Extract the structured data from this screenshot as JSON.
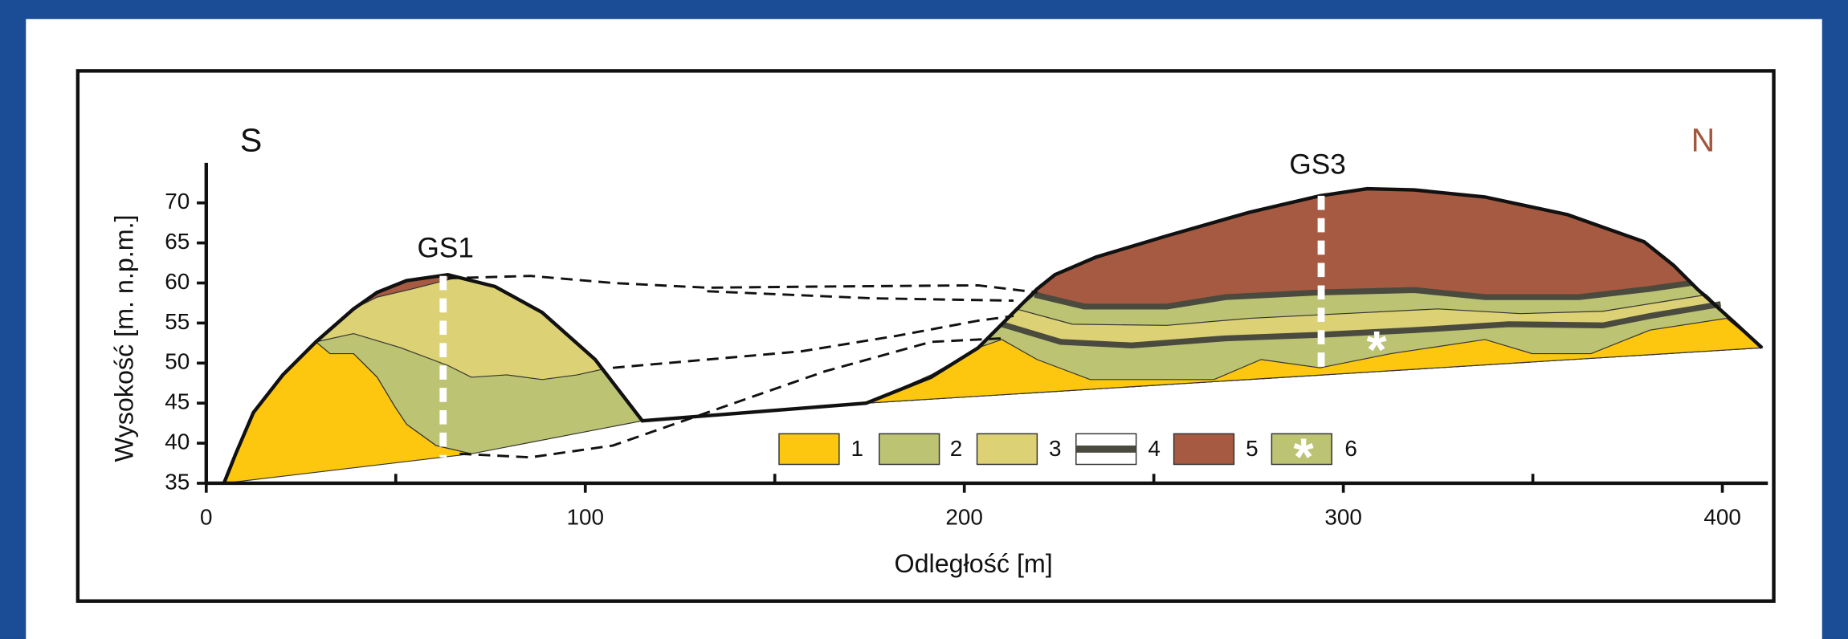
{
  "header": {
    "south": "S",
    "north": "N"
  },
  "boreholes": [
    "GS1",
    "GS3"
  ],
  "axes": {
    "y_label": "Wysokość [m. n.p.m.]",
    "x_label": "Odległość [m]",
    "xlim": [
      0,
      412
    ],
    "ylim": [
      35,
      75
    ],
    "xticks": [
      0,
      100,
      200,
      300,
      400
    ],
    "xminor": [
      50,
      150,
      250,
      350
    ],
    "yticks": [
      35,
      40,
      45,
      50,
      55,
      60,
      65,
      70
    ]
  },
  "legend": [
    "1",
    "2",
    "3",
    "4",
    "5",
    "6"
  ]
}
